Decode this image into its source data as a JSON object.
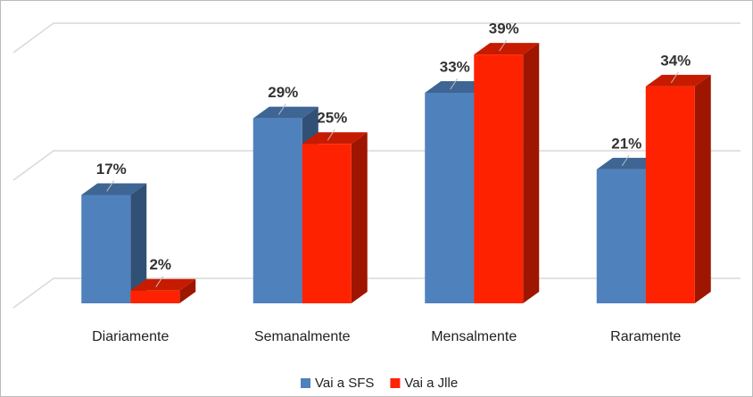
{
  "chart_data": {
    "type": "bar3d",
    "categories": [
      "Diariamente",
      "Semanalmente",
      "Mensalmente",
      "Raramente"
    ],
    "series": [
      {
        "name": "Vai a SFS",
        "color": "#4f81bd",
        "values": [
          17,
          29,
          33,
          21
        ],
        "value_labels": [
          "17%",
          "29%",
          "33%",
          "21%"
        ]
      },
      {
        "name": "Vai a Jlle",
        "color": "#ff2200",
        "values": [
          2,
          25,
          39,
          34
        ],
        "value_labels": [
          "2%",
          "25%",
          "39%",
          "34%"
        ]
      }
    ],
    "ylim": [
      0,
      40
    ],
    "yticks": [
      0,
      20,
      40
    ],
    "grid": true,
    "legend": "bottom"
  }
}
